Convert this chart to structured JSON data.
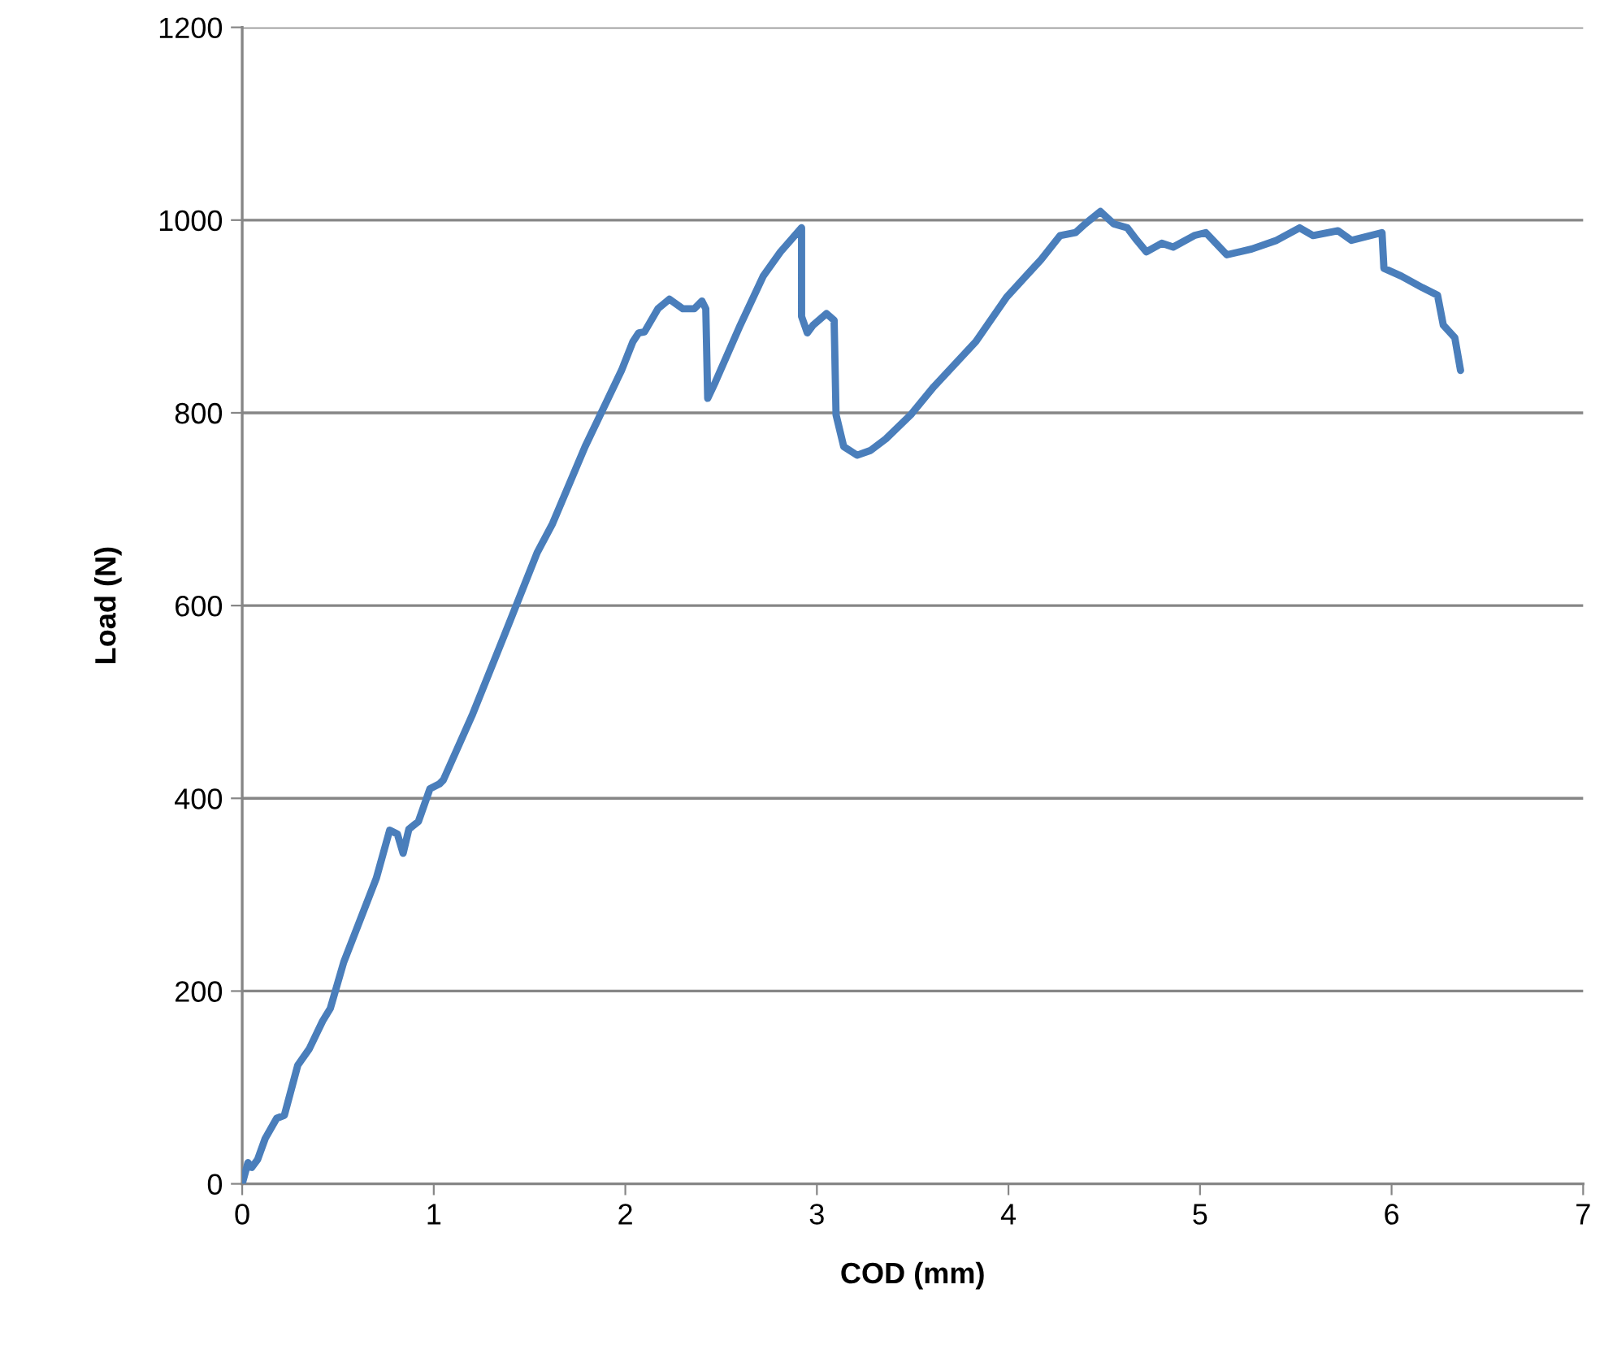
{
  "chart_data": {
    "type": "line",
    "xlabel": "COD (mm)",
    "ylabel": "Load (N)",
    "xlim": [
      0,
      7
    ],
    "xticks": [
      0,
      1,
      2,
      3,
      4,
      5,
      6,
      7
    ],
    "ylim": [
      0,
      1200
    ],
    "yticks": [
      0,
      200,
      400,
      600,
      800,
      1000,
      1200
    ],
    "grid": "y",
    "legend": false,
    "marker": "none",
    "line_style": "solid",
    "series": [
      {
        "color": "#4a7ebb",
        "x": [
          0,
          0.03,
          0.05,
          0.08,
          0.12,
          0.18,
          0.22,
          0.29,
          0.35,
          0.42,
          0.46,
          0.53,
          0.7,
          0.77,
          0.81,
          0.84,
          0.87,
          0.92,
          0.98,
          1.03,
          1.05,
          1.2,
          1.37,
          1.54,
          1.62,
          1.79,
          1.98,
          2.04,
          2.07,
          2.1,
          2.17,
          2.23,
          2.3,
          2.36,
          2.4,
          2.42,
          2.43,
          2.47,
          2.6,
          2.72,
          2.81,
          2.92,
          2.92,
          2.95,
          2.98,
          3.05,
          3.09,
          3.1,
          3.14,
          3.21,
          3.28,
          3.36,
          3.49,
          3.61,
          3.83,
          3.99,
          4.17,
          4.27,
          4.35,
          4.4,
          4.48,
          4.55,
          4.62,
          4.67,
          4.72,
          4.8,
          4.86,
          4.97,
          5.03,
          5.14,
          5.27,
          5.4,
          5.52,
          5.59,
          5.72,
          5.79,
          5.95,
          5.96,
          6.05,
          6.16,
          6.24,
          6.27,
          6.33,
          6.36
        ],
        "values": [
          0,
          22,
          17,
          25,
          47,
          68,
          71,
          123,
          140,
          169,
          182,
          230,
          317,
          367,
          363,
          343,
          368,
          376,
          410,
          415,
          419,
          486,
          570,
          655,
          685,
          765,
          844,
          874,
          883,
          884,
          908,
          918,
          908,
          908,
          916,
          908,
          815,
          832,
          891,
          942,
          967,
          992,
          900,
          883,
          891,
          903,
          896,
          798,
          765,
          756,
          761,
          773,
          798,
          827,
          874,
          920,
          959,
          984,
          987,
          996,
          1009,
          996,
          992,
          979,
          967,
          976,
          972,
          984,
          987,
          964,
          970,
          979,
          992,
          984,
          989,
          979,
          987,
          950,
          942,
          930,
          922,
          891,
          878,
          844
        ]
      }
    ]
  }
}
